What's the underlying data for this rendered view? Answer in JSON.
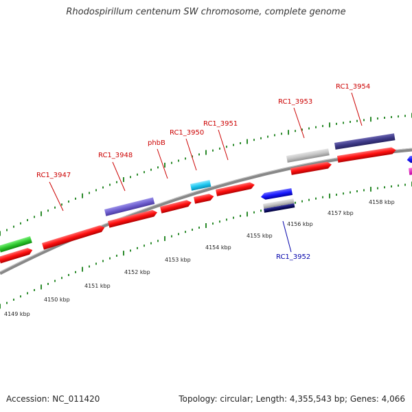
{
  "title": "Rhodospirillum centenum SW chromosome, complete genome",
  "footer": {
    "accession": "Accession: NC_011420",
    "summary": "Topology: circular; Length: 4,355,543 bp; Genes: 4,066"
  },
  "colors": {
    "forward_cds": "#ff0a0a",
    "reverse_cds": "#1a1aff",
    "backbone": "#888888",
    "tick": "#2a8a2a",
    "forward_label": "#cc0000",
    "reverse_label": "#0000aa"
  },
  "ticks": [
    {
      "label": "4149 kbp"
    },
    {
      "label": "4150 kbp"
    },
    {
      "label": "4151 kbp"
    },
    {
      "label": "4152 kbp"
    },
    {
      "label": "4153 kbp"
    },
    {
      "label": "4154 kbp"
    },
    {
      "label": "4155 kbp"
    },
    {
      "label": "4156 kbp"
    },
    {
      "label": "4157 kbp"
    },
    {
      "label": "4158 kbp"
    }
  ],
  "genes": [
    {
      "name": "RC1_3947",
      "strand": "forward"
    },
    {
      "name": "RC1_3948",
      "strand": "forward"
    },
    {
      "name": "phbB",
      "strand": "forward"
    },
    {
      "name": "RC1_3950",
      "strand": "forward"
    },
    {
      "name": "RC1_3951",
      "strand": "forward"
    },
    {
      "name": "RC1_3952",
      "strand": "reverse"
    },
    {
      "name": "RC1_3953",
      "strand": "forward"
    },
    {
      "name": "RC1_3954",
      "strand": "forward"
    }
  ]
}
